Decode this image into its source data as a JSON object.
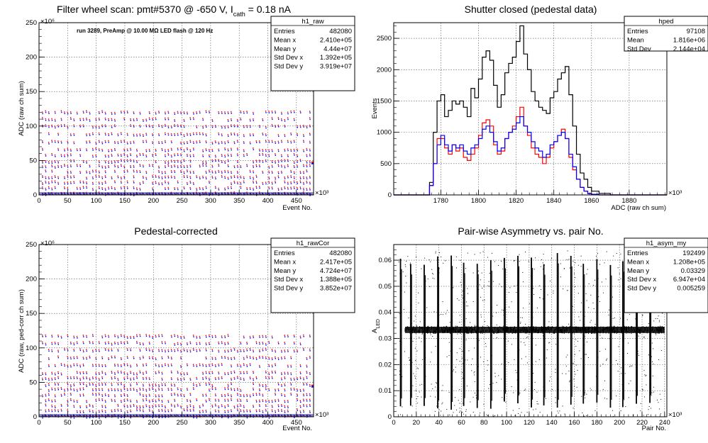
{
  "chart_data": [
    {
      "id": "raw",
      "type": "scatter",
      "title": "Filter wheel scan: pmt#5370 @  -650 V, I",
      "title_sub": "cath",
      "title_tail": " = 0.18 nA",
      "annotation": "run 3289, PreAmp @ 10.00 MΩ LED flash @  120 Hz",
      "xlabel": "Event No.",
      "ylabel": "ADC (raw ch sum)",
      "x_exponent": "×10³",
      "y_exponent": "×10⁶",
      "xlim": [
        0,
        480
      ],
      "ylim": [
        0,
        250
      ],
      "xticks": [
        0,
        50,
        100,
        150,
        200,
        250,
        300,
        350,
        400,
        450
      ],
      "yticks": [
        0,
        50,
        100,
        150,
        200,
        250
      ],
      "grid": true,
      "stats_title": "h1_raw",
      "stats": [
        {
          "label": "Entries",
          "value": "482080"
        },
        {
          "label": "Mean x",
          "value": "2.410e+05"
        },
        {
          "label": "Mean y",
          "value": "4.44e+07"
        },
        {
          "label": "Std Dev x",
          "value": "1.392e+05"
        },
        {
          "label": "Std Dev y",
          "value": "3.919e+07"
        }
      ],
      "series_colors": [
        "#ff0000",
        "#0000ff"
      ],
      "levels": [
        120,
        110,
        100,
        88,
        77,
        66,
        58,
        49,
        42,
        34,
        26,
        18,
        10,
        2
      ],
      "x_start": 5,
      "x_step": 5.5,
      "last_level": 47
    },
    {
      "id": "ped",
      "type": "line",
      "title": "Shutter closed (pedestal data)",
      "xlabel": "ADC (raw ch sum)",
      "ylabel": "Events",
      "x_exponent": "×10³",
      "xlim": [
        1755,
        1900
      ],
      "ylim": [
        0,
        2750
      ],
      "xticks": [
        1780,
        1800,
        1820,
        1840,
        1860,
        1880
      ],
      "yticks": [
        0,
        500,
        1000,
        1500,
        2000,
        2500
      ],
      "grid": true,
      "stats_title": "hped",
      "stats": [
        {
          "label": "Entries",
          "value": "97108"
        },
        {
          "label": "Mean",
          "value": "1.816e+06"
        },
        {
          "label": "Std Dev",
          "value": "2.144e+04"
        }
      ],
      "series": [
        {
          "color": "#000000",
          "x": [
            1755,
            1770,
            1774,
            1776,
            1778,
            1780,
            1782,
            1784,
            1786,
            1788,
            1790,
            1792,
            1794,
            1796,
            1798,
            1800,
            1802,
            1804,
            1806,
            1808,
            1810,
            1812,
            1814,
            1816,
            1818,
            1820,
            1822,
            1824,
            1826,
            1828,
            1830,
            1832,
            1834,
            1836,
            1838,
            1840,
            1842,
            1844,
            1846,
            1848,
            1850,
            1852,
            1854,
            1856,
            1858,
            1860,
            1864,
            1870,
            1900
          ],
          "y": [
            0,
            0,
            200,
            1000,
            1500,
            1600,
            1250,
            1350,
            1500,
            1450,
            1500,
            1400,
            1250,
            1700,
            1550,
            1850,
            2200,
            2300,
            2150,
            1750,
            1400,
            1600,
            1950,
            2100,
            2200,
            2450,
            2700,
            2250,
            2000,
            1650,
            1500,
            1400,
            1350,
            1300,
            1550,
            1650,
            1850,
            1950,
            2050,
            1600,
            1100,
            650,
            350,
            250,
            120,
            60,
            25,
            0,
            0
          ]
        },
        {
          "color": "#ff0000",
          "x": [
            1755,
            1770,
            1774,
            1776,
            1778,
            1780,
            1782,
            1784,
            1786,
            1788,
            1790,
            1792,
            1794,
            1796,
            1798,
            1800,
            1802,
            1804,
            1806,
            1808,
            1810,
            1812,
            1814,
            1816,
            1818,
            1820,
            1822,
            1824,
            1826,
            1828,
            1830,
            1832,
            1834,
            1836,
            1838,
            1840,
            1842,
            1844,
            1846,
            1848,
            1850,
            1852,
            1854,
            1856,
            1858,
            1860,
            1864,
            1870,
            1900
          ],
          "y": [
            0,
            0,
            150,
            500,
            900,
            900,
            750,
            650,
            800,
            700,
            750,
            600,
            550,
            650,
            750,
            950,
            1150,
            1200,
            1100,
            800,
            650,
            700,
            900,
            1000,
            1100,
            1250,
            1400,
            1100,
            950,
            750,
            650,
            600,
            500,
            600,
            750,
            850,
            950,
            1050,
            900,
            600,
            400,
            250,
            120,
            60,
            25,
            10,
            0,
            0,
            0
          ]
        },
        {
          "color": "#0000ff",
          "x": [
            1755,
            1770,
            1774,
            1776,
            1778,
            1780,
            1782,
            1784,
            1786,
            1788,
            1790,
            1792,
            1794,
            1796,
            1798,
            1800,
            1802,
            1804,
            1806,
            1808,
            1810,
            1812,
            1814,
            1816,
            1818,
            1820,
            1822,
            1824,
            1826,
            1828,
            1830,
            1832,
            1834,
            1836,
            1838,
            1840,
            1842,
            1844,
            1846,
            1848,
            1850,
            1852,
            1854,
            1856,
            1858,
            1860,
            1864,
            1870,
            1900
          ],
          "y": [
            0,
            0,
            150,
            500,
            800,
            950,
            800,
            700,
            800,
            750,
            800,
            700,
            650,
            750,
            800,
            900,
            1050,
            1100,
            1000,
            850,
            700,
            750,
            900,
            1000,
            1050,
            1150,
            1250,
            1100,
            1000,
            850,
            750,
            700,
            600,
            650,
            800,
            850,
            950,
            1000,
            900,
            650,
            450,
            250,
            120,
            60,
            20,
            10,
            0,
            0,
            0
          ]
        }
      ]
    },
    {
      "id": "cor",
      "type": "scatter",
      "title": "Pedestal-corrected",
      "xlabel": "Event No.",
      "ylabel": "ADC (raw, ped-corr ch sum)",
      "x_exponent": "×10³",
      "y_exponent": "×10⁶",
      "xlim": [
        0,
        480
      ],
      "ylim": [
        0,
        250
      ],
      "xticks": [
        0,
        50,
        100,
        150,
        200,
        250,
        300,
        350,
        400,
        450
      ],
      "yticks": [
        0,
        50,
        100,
        150,
        200,
        250
      ],
      "grid": true,
      "stats_title": "h1_rawCor",
      "stats": [
        {
          "label": "Entries",
          "value": "482080"
        },
        {
          "label": "Mean x",
          "value": "2.417e+05"
        },
        {
          "label": "Mean y",
          "value": "4.724e+07"
        },
        {
          "label": "Std Dev x",
          "value": "1.388e+05"
        },
        {
          "label": "Std Dev y",
          "value": "3.852e+07"
        }
      ],
      "series_colors": [
        "#ff0000",
        "#0000ff"
      ],
      "levels": [
        117,
        107,
        97,
        86,
        75,
        64,
        56,
        47,
        40,
        32,
        24,
        16,
        9,
        1
      ],
      "x_start": 5,
      "x_step": 5.5,
      "last_level": 45
    },
    {
      "id": "asym",
      "type": "scatter",
      "title": "Pair-wise Asymmetry vs. pair No.",
      "xlabel": "Pair No.",
      "ylabel": "A",
      "ylabel_sub": "LED",
      "x_exponent": "×10³",
      "xlim": [
        0,
        242
      ],
      "ylim": [
        0,
        0.066
      ],
      "xticks": [
        0,
        20,
        40,
        60,
        80,
        100,
        120,
        140,
        160,
        180,
        200,
        220,
        240
      ],
      "yticks": [
        0,
        0.01,
        0.02,
        0.03,
        0.04,
        0.05,
        0.06
      ],
      "ytick_labels": [
        "0",
        "0.01",
        "0.02",
        "0.03",
        "0.04",
        "0.05",
        "0.06"
      ],
      "grid": true,
      "stats_title": "h1_asym_my",
      "stats": [
        {
          "label": "Entries",
          "value": "192499"
        },
        {
          "label": "Mean x",
          "value": "1.208e+05"
        },
        {
          "label": "Mean y",
          "value": "0.03329"
        },
        {
          "label": "Std Dev x",
          "value": "6.947e+04"
        },
        {
          "label": "Std Dev y",
          "value": "0.005259"
        }
      ],
      "band_center": 0.0333,
      "band_halfwidth": 0.0012,
      "spikes_x": [
        6,
        15,
        27,
        39,
        51,
        62,
        74,
        86,
        98,
        110,
        122,
        133,
        145,
        157,
        168,
        180,
        192,
        203,
        215,
        227
      ]
    }
  ]
}
